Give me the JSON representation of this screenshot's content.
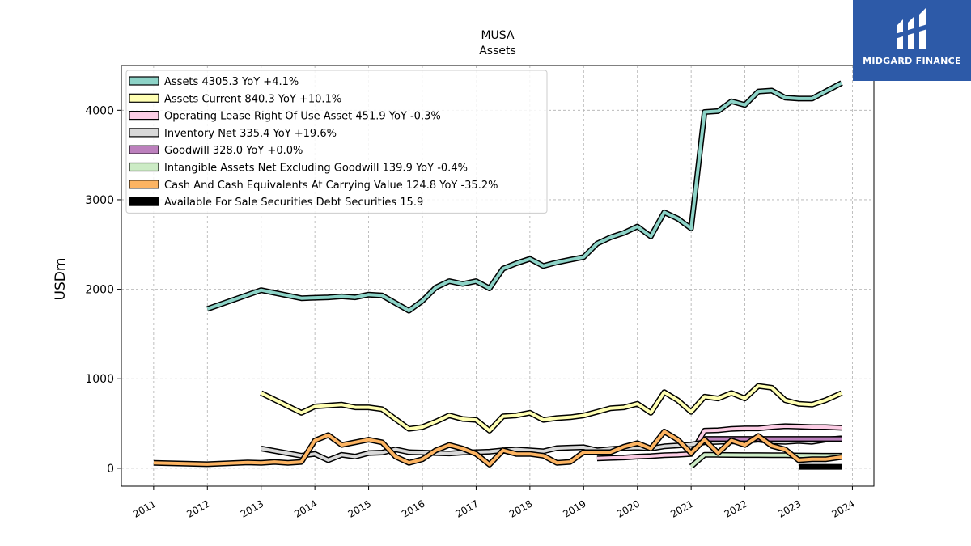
{
  "brand": {
    "name": "MIDGARD FINANCE",
    "bg_color": "#2d5aa8"
  },
  "chart_data": {
    "type": "line",
    "title": "MUSA",
    "subtitle": "Assets",
    "ylabel": "USDm",
    "xlabel": "",
    "xlim": [
      2010.4,
      2024.4
    ],
    "ylim": [
      -200,
      4500
    ],
    "yticks": [
      0,
      1000,
      2000,
      3000,
      4000
    ],
    "xticks": [
      2011,
      2012,
      2013,
      2014,
      2015,
      2016,
      2017,
      2018,
      2019,
      2020,
      2021,
      2022,
      2023,
      2024
    ],
    "grid": true,
    "legend_position": "top-left",
    "series": [
      {
        "name": "Assets",
        "legend": "Assets  4305.3 YoY +4.1%",
        "color": "#8dd3c7",
        "points": [
          [
            2012.0,
            1780
          ],
          [
            2013.0,
            1990
          ],
          [
            2013.75,
            1900
          ],
          [
            2014.25,
            1910
          ],
          [
            2014.5,
            1920
          ],
          [
            2014.75,
            1910
          ],
          [
            2015.0,
            1940
          ],
          [
            2015.25,
            1930
          ],
          [
            2015.75,
            1760
          ],
          [
            2016.0,
            1870
          ],
          [
            2016.25,
            2020
          ],
          [
            2016.5,
            2090
          ],
          [
            2016.75,
            2060
          ],
          [
            2017.0,
            2090
          ],
          [
            2017.25,
            2010
          ],
          [
            2017.5,
            2230
          ],
          [
            2017.75,
            2290
          ],
          [
            2018.0,
            2340
          ],
          [
            2018.25,
            2260
          ],
          [
            2018.5,
            2300
          ],
          [
            2018.75,
            2330
          ],
          [
            2019.0,
            2360
          ],
          [
            2019.25,
            2510
          ],
          [
            2019.5,
            2580
          ],
          [
            2019.75,
            2630
          ],
          [
            2020.0,
            2700
          ],
          [
            2020.25,
            2590
          ],
          [
            2020.5,
            2860
          ],
          [
            2020.75,
            2790
          ],
          [
            2021.0,
            2680
          ],
          [
            2021.25,
            3980
          ],
          [
            2021.5,
            3990
          ],
          [
            2021.75,
            4100
          ],
          [
            2022.0,
            4060
          ],
          [
            2022.25,
            4210
          ],
          [
            2022.5,
            4220
          ],
          [
            2022.75,
            4140
          ],
          [
            2023.0,
            4130
          ],
          [
            2023.25,
            4130
          ],
          [
            2023.5,
            4210
          ],
          [
            2023.8,
            4305
          ]
        ]
      },
      {
        "name": "Assets Current",
        "legend": "Assets Current  840.3 YoY +10.1%",
        "color": "#ffffb3",
        "points": [
          [
            2013.0,
            840
          ],
          [
            2013.75,
            620
          ],
          [
            2014.0,
            690
          ],
          [
            2014.25,
            700
          ],
          [
            2014.5,
            710
          ],
          [
            2014.75,
            680
          ],
          [
            2015.0,
            680
          ],
          [
            2015.25,
            660
          ],
          [
            2015.75,
            440
          ],
          [
            2016.0,
            460
          ],
          [
            2016.25,
            520
          ],
          [
            2016.5,
            590
          ],
          [
            2016.75,
            550
          ],
          [
            2017.0,
            540
          ],
          [
            2017.25,
            420
          ],
          [
            2017.5,
            580
          ],
          [
            2017.75,
            590
          ],
          [
            2018.0,
            620
          ],
          [
            2018.25,
            540
          ],
          [
            2018.5,
            560
          ],
          [
            2018.75,
            570
          ],
          [
            2019.0,
            590
          ],
          [
            2019.25,
            630
          ],
          [
            2019.5,
            670
          ],
          [
            2019.75,
            680
          ],
          [
            2020.0,
            720
          ],
          [
            2020.25,
            620
          ],
          [
            2020.5,
            850
          ],
          [
            2020.75,
            760
          ],
          [
            2021.0,
            630
          ],
          [
            2021.25,
            800
          ],
          [
            2021.5,
            780
          ],
          [
            2021.75,
            840
          ],
          [
            2022.0,
            780
          ],
          [
            2022.25,
            920
          ],
          [
            2022.5,
            900
          ],
          [
            2022.75,
            760
          ],
          [
            2023.0,
            720
          ],
          [
            2023.25,
            710
          ],
          [
            2023.5,
            760
          ],
          [
            2023.8,
            840
          ]
        ]
      },
      {
        "name": "Operating Lease Right Of Use Asset",
        "legend": "Operating Lease Right Of Use Asset  451.9 YoY -0.3%",
        "color": "#fccde5",
        "points": [
          [
            2019.25,
            110
          ],
          [
            2019.5,
            115
          ],
          [
            2019.75,
            120
          ],
          [
            2020.0,
            130
          ],
          [
            2020.25,
            135
          ],
          [
            2020.5,
            145
          ],
          [
            2020.75,
            150
          ],
          [
            2021.0,
            160
          ],
          [
            2021.25,
            420
          ],
          [
            2021.5,
            425
          ],
          [
            2021.75,
            440
          ],
          [
            2022.0,
            445
          ],
          [
            2022.25,
            445
          ],
          [
            2022.5,
            460
          ],
          [
            2022.75,
            470
          ],
          [
            2023.0,
            465
          ],
          [
            2023.25,
            460
          ],
          [
            2023.5,
            460
          ],
          [
            2023.8,
            452
          ]
        ]
      },
      {
        "name": "Inventory Net",
        "legend": "Inventory Net  335.4 YoY +19.6%",
        "color": "#d9d9d9",
        "points": [
          [
            2013.0,
            220
          ],
          [
            2013.75,
            140
          ],
          [
            2014.0,
            160
          ],
          [
            2014.25,
            90
          ],
          [
            2014.5,
            150
          ],
          [
            2014.75,
            130
          ],
          [
            2015.0,
            170
          ],
          [
            2015.25,
            175
          ],
          [
            2015.5,
            210
          ],
          [
            2015.75,
            180
          ],
          [
            2016.0,
            175
          ],
          [
            2016.25,
            170
          ],
          [
            2016.5,
            165
          ],
          [
            2016.75,
            175
          ],
          [
            2017.0,
            180
          ],
          [
            2017.25,
            185
          ],
          [
            2017.5,
            200
          ],
          [
            2017.75,
            210
          ],
          [
            2018.0,
            200
          ],
          [
            2018.25,
            190
          ],
          [
            2018.5,
            225
          ],
          [
            2018.75,
            230
          ],
          [
            2019.0,
            235
          ],
          [
            2019.25,
            200
          ],
          [
            2019.5,
            215
          ],
          [
            2019.75,
            225
          ],
          [
            2020.0,
            230
          ],
          [
            2020.25,
            220
          ],
          [
            2020.5,
            245
          ],
          [
            2020.75,
            255
          ],
          [
            2021.0,
            265
          ],
          [
            2021.25,
            290
          ],
          [
            2021.5,
            295
          ],
          [
            2021.75,
            300
          ],
          [
            2022.0,
            305
          ],
          [
            2022.25,
            320
          ],
          [
            2022.5,
            300
          ],
          [
            2022.75,
            295
          ],
          [
            2023.0,
            305
          ],
          [
            2023.25,
            295
          ],
          [
            2023.5,
            320
          ],
          [
            2023.8,
            335
          ]
        ]
      },
      {
        "name": "Goodwill",
        "legend": "Goodwill  328.0 YoY +0.0%",
        "color": "#bc80bd",
        "points": [
          [
            2021.25,
            328
          ],
          [
            2021.5,
            328
          ],
          [
            2021.75,
            328
          ],
          [
            2022.0,
            328
          ],
          [
            2022.25,
            328
          ],
          [
            2022.5,
            328
          ],
          [
            2022.75,
            328
          ],
          [
            2023.0,
            328
          ],
          [
            2023.25,
            328
          ],
          [
            2023.5,
            328
          ],
          [
            2023.8,
            328
          ]
        ]
      },
      {
        "name": "Intangible Assets Net Excluding Goodwill",
        "legend": "Intangible Assets Net Excluding Goodwill  139.9 YoY -0.4%",
        "color": "#ccebc5",
        "points": [
          [
            2021.0,
            20
          ],
          [
            2021.25,
            150
          ],
          [
            2021.5,
            150
          ],
          [
            2021.75,
            148
          ],
          [
            2022.0,
            147
          ],
          [
            2022.25,
            147
          ],
          [
            2022.5,
            146
          ],
          [
            2022.75,
            145
          ],
          [
            2023.0,
            143
          ],
          [
            2023.25,
            141
          ],
          [
            2023.5,
            140
          ],
          [
            2023.8,
            140
          ]
        ]
      },
      {
        "name": "Cash And Cash Equivalents At Carrying Value",
        "legend": "Cash And Cash Equivalents At Carrying Value  124.8 YoY -35.2%",
        "color": "#fdb462",
        "points": [
          [
            2011.0,
            60
          ],
          [
            2012.0,
            45
          ],
          [
            2012.75,
            65
          ],
          [
            2013.0,
            60
          ],
          [
            2013.25,
            70
          ],
          [
            2013.5,
            60
          ],
          [
            2013.75,
            70
          ],
          [
            2014.0,
            310
          ],
          [
            2014.25,
            370
          ],
          [
            2014.5,
            260
          ],
          [
            2014.75,
            290
          ],
          [
            2015.0,
            320
          ],
          [
            2015.25,
            290
          ],
          [
            2015.5,
            130
          ],
          [
            2015.75,
            60
          ],
          [
            2016.0,
            100
          ],
          [
            2016.25,
            200
          ],
          [
            2016.5,
            260
          ],
          [
            2016.75,
            220
          ],
          [
            2017.0,
            160
          ],
          [
            2017.25,
            40
          ],
          [
            2017.5,
            200
          ],
          [
            2017.75,
            160
          ],
          [
            2018.0,
            160
          ],
          [
            2018.25,
            140
          ],
          [
            2018.5,
            60
          ],
          [
            2018.75,
            70
          ],
          [
            2019.0,
            180
          ],
          [
            2019.25,
            180
          ],
          [
            2019.5,
            180
          ],
          [
            2019.75,
            240
          ],
          [
            2020.0,
            280
          ],
          [
            2020.25,
            220
          ],
          [
            2020.5,
            410
          ],
          [
            2020.75,
            320
          ],
          [
            2021.0,
            170
          ],
          [
            2021.25,
            320
          ],
          [
            2021.5,
            170
          ],
          [
            2021.75,
            310
          ],
          [
            2022.0,
            260
          ],
          [
            2022.25,
            360
          ],
          [
            2022.5,
            250
          ],
          [
            2022.75,
            210
          ],
          [
            2023.0,
            90
          ],
          [
            2023.25,
            100
          ],
          [
            2023.5,
            100
          ],
          [
            2023.8,
            125
          ]
        ]
      },
      {
        "name": "Available For Sale Securities Debt Securities",
        "legend": "Available For Sale Securities Debt Securities  15.9",
        "color": "#000000",
        "points": [
          [
            2023.0,
            16
          ],
          [
            2023.25,
            16
          ],
          [
            2023.5,
            16
          ],
          [
            2023.8,
            16
          ]
        ]
      }
    ]
  }
}
